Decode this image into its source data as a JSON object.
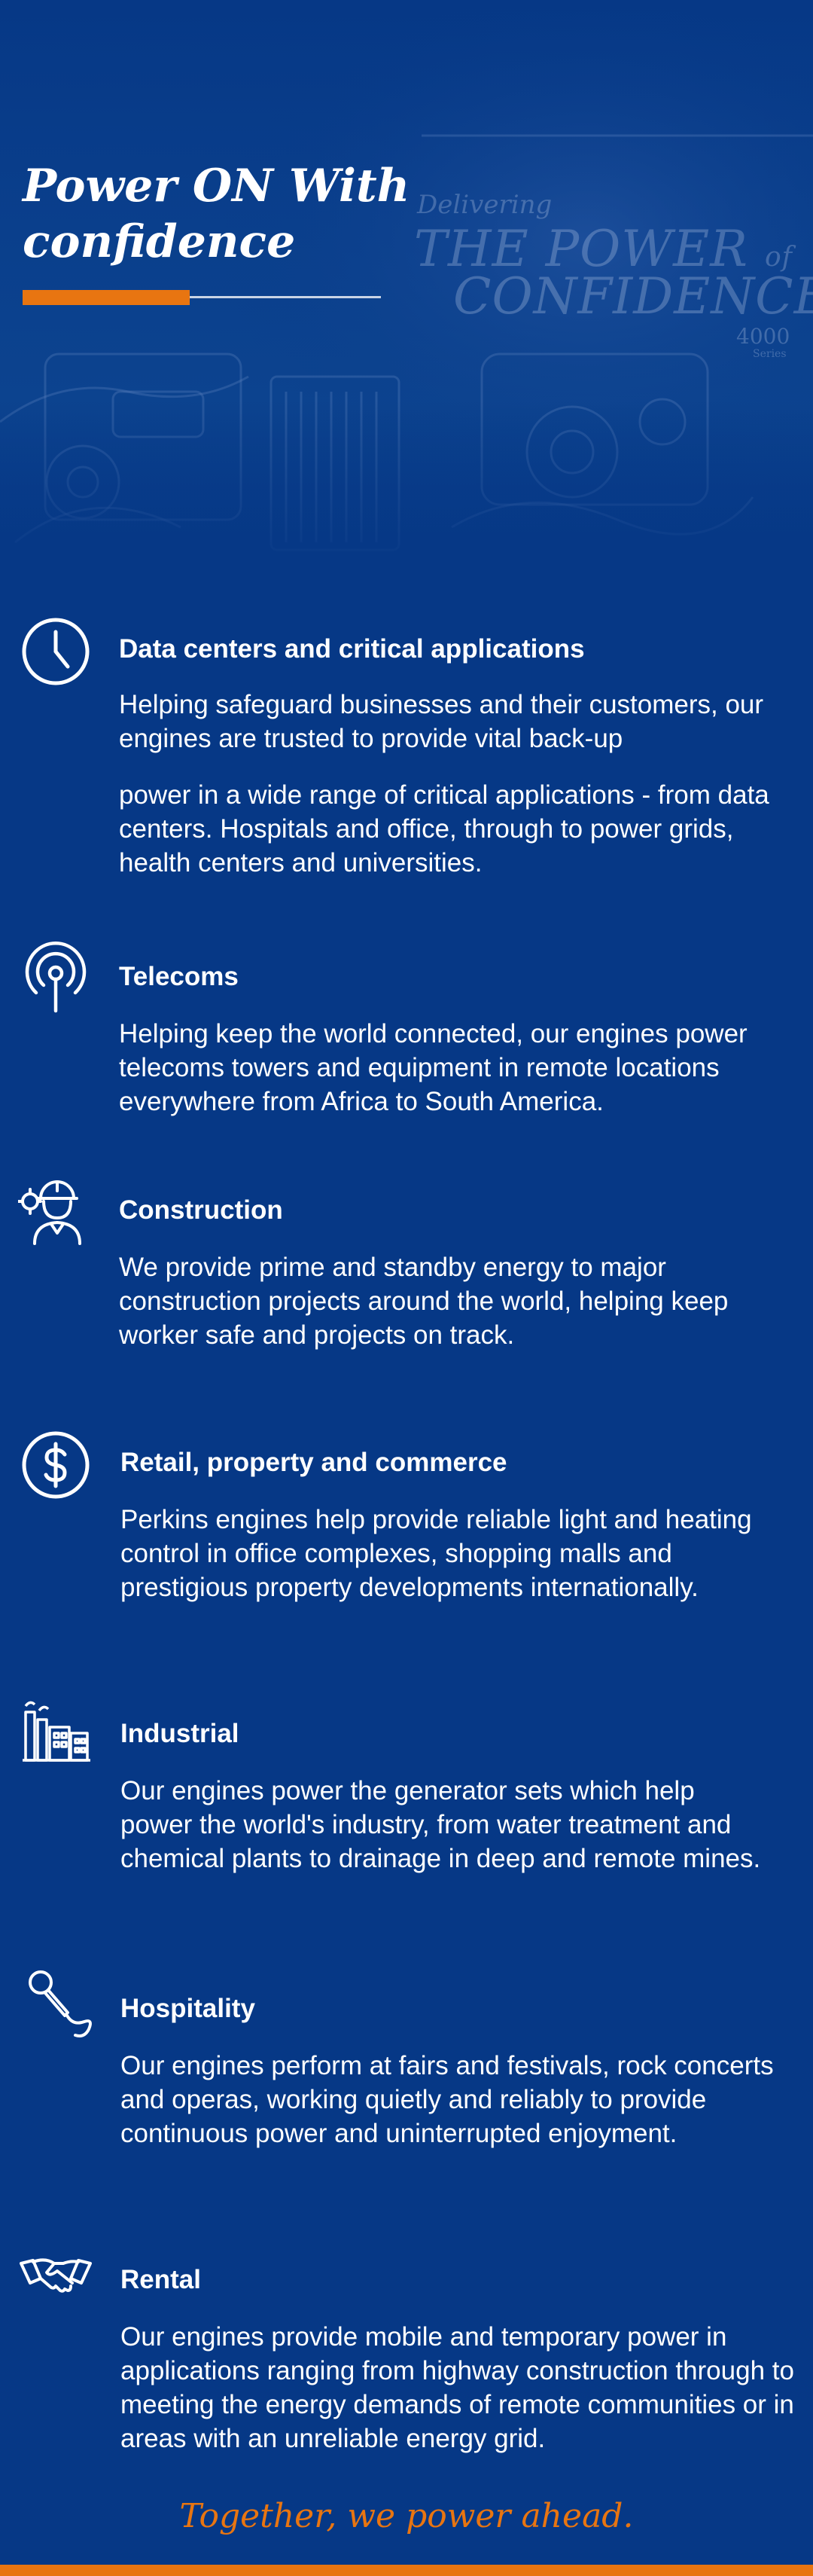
{
  "hero": {
    "title": "Power ON With confidence",
    "ad_text": {
      "delivering": "Delivering",
      "the_power": "THE POWER",
      "of": "of",
      "confidence": "CONFIDENCE",
      "model": "4000",
      "series": "Series"
    },
    "colors": {
      "background": "#063886",
      "accent": "#e87511"
    }
  },
  "sections": [
    {
      "icon": "clock-icon",
      "title": "Data centers and critical applications",
      "body_1": "Helping safeguard businesses and their customers, our engines are trusted to provide vital back-up",
      "body_2": "power in a wide range of critical applications - from data centers. Hospitals and office, through to power grids, health centers and universities."
    },
    {
      "icon": "broadcast-icon",
      "title": "Telecoms",
      "body": "Helping keep the world connected, our engines power telecoms towers and equipment in remote locations everywhere from Africa to South America."
    },
    {
      "icon": "construction-worker-icon",
      "title": "Construction",
      "body": "We provide prime and standby energy to major construction projects around the world, helping keep worker safe and projects on track."
    },
    {
      "icon": "dollar-icon",
      "title": "Retail, property and commerce",
      "body": "Perkins engines help provide reliable light and heating control in office complexes, shopping malls and prestigious property developments internationally."
    },
    {
      "icon": "factory-icon",
      "title": "Industrial",
      "body": "Our engines power the generator sets which help power the world's industry, from water treatment and chemical plants to drainage in deep and remote mines."
    },
    {
      "icon": "microphone-icon",
      "title": "Hospitality",
      "body": "Our engines perform at fairs and festivals, rock concerts and operas, working quietly and reliably to provide continuous power and uninterrupted enjoyment."
    },
    {
      "icon": "handshake-icon",
      "title": "Rental",
      "body": "Our engines provide mobile and temporary power in applications ranging from highway construction through to meeting the energy demands of remote communities or in areas with an unreliable energy grid."
    }
  ],
  "footer": {
    "tagline": "Together, we power ahead."
  }
}
